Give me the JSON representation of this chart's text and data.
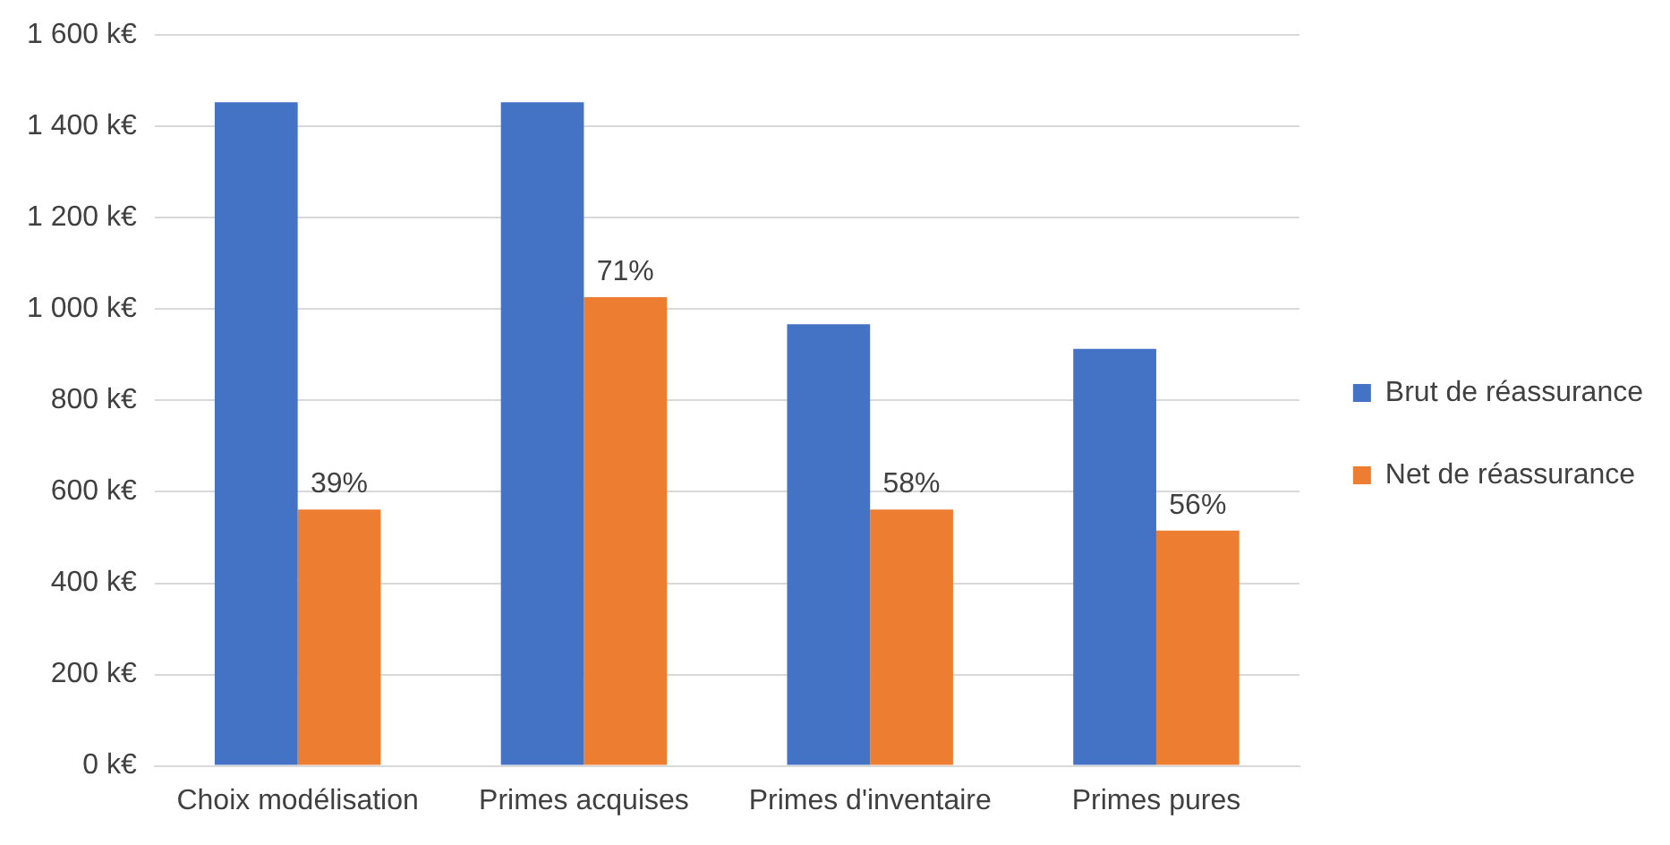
{
  "chart_data": {
    "type": "bar",
    "categories": [
      "Choix modélisation",
      "Primes acquises",
      "Primes d'inventaire",
      "Primes pures"
    ],
    "series": [
      {
        "name": "Brut de réassurance",
        "color": "#4472c4",
        "values": [
          1453,
          1453,
          967,
          913
        ]
      },
      {
        "name": "Net de réassurance",
        "color": "#ed7d31",
        "values": [
          561,
          1026,
          561,
          515
        ]
      }
    ],
    "annotations": [
      {
        "text": "39%",
        "x": "Choix modélisation",
        "y": 561
      },
      {
        "text": "71%",
        "x": "Primes acquises",
        "y": 1026
      },
      {
        "text": "58%",
        "x": "Primes d'inventaire",
        "y": 561
      },
      {
        "text": "56%",
        "x": "Primes pures",
        "y": 515
      }
    ],
    "ylim": [
      0,
      1600
    ],
    "yticks": [
      {
        "value": 0,
        "label": "0 k€"
      },
      {
        "value": 200,
        "label": "200 k€"
      },
      {
        "value": 400,
        "label": "400 k€"
      },
      {
        "value": 600,
        "label": "600 k€"
      },
      {
        "value": 800,
        "label": "800 k€"
      },
      {
        "value": 1000,
        "label": "1 000 k€"
      },
      {
        "value": 1200,
        "label": "1 200 k€"
      },
      {
        "value": 1400,
        "label": "1 400 k€"
      },
      {
        "value": 1600,
        "label": "1 600 k€"
      }
    ],
    "grid": "y",
    "legend": "right"
  }
}
